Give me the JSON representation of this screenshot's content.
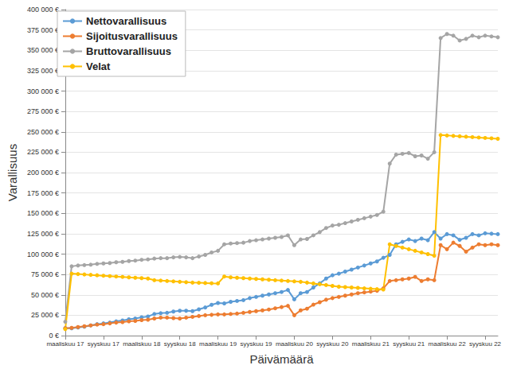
{
  "chart_data": {
    "type": "line",
    "x_label": "Päivämäärä",
    "y_label": "Varallisuus",
    "categories": [
      "maaliskuu 17",
      null,
      null,
      null,
      null,
      null,
      "syyskuu 17",
      null,
      null,
      null,
      null,
      null,
      "maaliskuu 18",
      null,
      null,
      null,
      null,
      null,
      "syyskuu 18",
      null,
      null,
      null,
      null,
      null,
      "maaliskuu 19",
      null,
      null,
      null,
      null,
      null,
      "syyskuu 19",
      null,
      null,
      null,
      null,
      null,
      "maaliskuu 20",
      null,
      null,
      null,
      null,
      null,
      "syyskuu 20",
      null,
      null,
      null,
      null,
      null,
      "maaliskuu 21",
      null,
      null,
      null,
      null,
      null,
      "syyskuu 21",
      null,
      null,
      null,
      null,
      null,
      "maaliskuu 22",
      null,
      null,
      null,
      null,
      null,
      "syyskuu 22",
      null,
      null
    ],
    "series": [
      {
        "name": "Nettovarallisuus",
        "color": "#5B9BD5",
        "marker": "circle",
        "line_style": "solid",
        "values": [
          9000,
          9000,
          10000,
          11000,
          12500,
          14000,
          15000,
          16000,
          17500,
          18500,
          20000,
          21000,
          22500,
          23500,
          26500,
          27500,
          28000,
          29500,
          30500,
          30500,
          30000,
          32200,
          34500,
          37800,
          40000,
          39500,
          41500,
          42500,
          43500,
          46000,
          47500,
          49000,
          50500,
          52000,
          53500,
          56000,
          44500,
          52000,
          53500,
          59000,
          64000,
          70000,
          74000,
          76000,
          78500,
          81000,
          83500,
          86000,
          88500,
          91000,
          95500,
          99000,
          112000,
          115000,
          118000,
          116000,
          119000,
          117000,
          127000,
          119000,
          124500,
          123000,
          117500,
          120000,
          124500,
          123000,
          125500,
          125000,
          124500
        ]
      },
      {
        "name": "Sijoitusvarallisuus",
        "color": "#ED7D31",
        "marker": "circle",
        "line_style": "solid",
        "values": [
          9000,
          9500,
          10500,
          11500,
          12500,
          13500,
          14000,
          15000,
          16000,
          16500,
          17500,
          18000,
          19000,
          19500,
          21000,
          22000,
          22000,
          21500,
          21000,
          22000,
          23000,
          24000,
          25000,
          25500,
          26000,
          26000,
          26500,
          27000,
          28000,
          29000,
          30000,
          31000,
          32000,
          33500,
          35000,
          36500,
          25000,
          31000,
          33000,
          38000,
          41000,
          44000,
          46000,
          47500,
          49000,
          50500,
          52000,
          53000,
          54000,
          55000,
          58000,
          67000,
          68000,
          69000,
          70000,
          72000,
          67000,
          69000,
          68000,
          111000,
          106000,
          114000,
          110000,
          103000,
          108000,
          112000,
          111000,
          112000,
          111000
        ]
      },
      {
        "name": "Bruttovarallisuus",
        "color": "#A5A5A5",
        "marker": "circle",
        "line_style": "solid",
        "values": [
          17000,
          85000,
          86000,
          86500,
          87000,
          88000,
          88500,
          89000,
          90000,
          90500,
          91500,
          92000,
          93000,
          93500,
          94500,
          95000,
          95000,
          96000,
          96500,
          96000,
          95000,
          97000,
          99000,
          102000,
          104000,
          112000,
          113000,
          113500,
          114000,
          116000,
          117000,
          118000,
          119000,
          120000,
          121000,
          123000,
          111000,
          118000,
          118500,
          123000,
          127000,
          132000,
          135000,
          136000,
          138000,
          140000,
          142000,
          144000,
          146000,
          148000,
          152000,
          211000,
          222000,
          223000,
          224000,
          220000,
          221000,
          217000,
          225000,
          365000,
          370000,
          368000,
          362000,
          364000,
          368000,
          366000,
          368000,
          367000,
          366000
        ]
      },
      {
        "name": "Velat",
        "color": "#FFC000",
        "marker": "circle",
        "line_style": "solid",
        "values": [
          8000,
          76000,
          75500,
          75000,
          74500,
          74000,
          73500,
          73000,
          72500,
          72000,
          71500,
          71000,
          70500,
          70000,
          68000,
          67500,
          67000,
          66500,
          66000,
          65500,
          65000,
          64800,
          64500,
          64200,
          64000,
          72500,
          71500,
          71000,
          70500,
          70000,
          69500,
          69000,
          68500,
          68000,
          67500,
          67000,
          66500,
          66000,
          65000,
          64000,
          63000,
          62000,
          61000,
          60000,
          59500,
          59000,
          58500,
          58000,
          57500,
          57000,
          56500,
          112000,
          110000,
          108000,
          106000,
          104000,
          102000,
          100000,
          98000,
          246000,
          245500,
          245000,
          244500,
          244000,
          243500,
          243000,
          242500,
          242000,
          241500
        ]
      }
    ],
    "ylim": [
      0,
      400000
    ],
    "yticks": [
      {
        "value": 0,
        "label": "0 €"
      },
      {
        "value": 25000,
        "label": "25 000 €"
      },
      {
        "value": 50000,
        "label": "50 000 €"
      },
      {
        "value": 75000,
        "label": "75 000 €"
      },
      {
        "value": 100000,
        "label": "100 000 €"
      },
      {
        "value": 125000,
        "label": "125 000 €"
      },
      {
        "value": 150000,
        "label": "150 000 €"
      },
      {
        "value": 175000,
        "label": "175 000 €"
      },
      {
        "value": 200000,
        "label": "200 000 €"
      },
      {
        "value": 225000,
        "label": "225 000 €"
      },
      {
        "value": 250000,
        "label": "250 000 €"
      },
      {
        "value": 275000,
        "label": "275 000 €"
      },
      {
        "value": 300000,
        "label": "300 000 €"
      },
      {
        "value": 325000,
        "label": "325 000 €"
      },
      {
        "value": 350000,
        "label": "350 000 €"
      },
      {
        "value": 375000,
        "label": "375 000 €"
      },
      {
        "value": 400000,
        "label": "400 000 €"
      }
    ],
    "grid": true,
    "legend": "top-left"
  }
}
